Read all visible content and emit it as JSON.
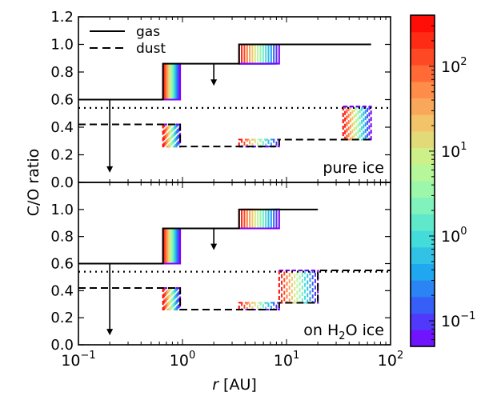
{
  "chart_data": {
    "type": "line",
    "ylabel": "C/O ratio",
    "xlabel_italic": "r",
    "xlabel_unit": "[AU]",
    "x_scale": "log",
    "xlim": [
      0.1,
      100
    ],
    "ylim": [
      0.0,
      1.2
    ],
    "y_ticks": [
      "0.0",
      "0.2",
      "0.4",
      "0.6",
      "0.8",
      "1.0",
      "1.2"
    ],
    "x_ticks": [
      {
        "base": "10",
        "exp": "−1",
        "value": 0.1
      },
      {
        "base": "10",
        "exp": "0",
        "value": 1
      },
      {
        "base": "10",
        "exp": "1",
        "value": 10
      },
      {
        "base": "10",
        "exp": "2",
        "value": 100
      }
    ],
    "legend": {
      "placement": "top-left",
      "entries": [
        {
          "label": "gas",
          "style": "solid"
        },
        {
          "label": "dust",
          "style": "dashed"
        }
      ]
    },
    "reference_line": {
      "y": 0.54,
      "style": "dotted"
    },
    "panels": [
      {
        "label": "pure ice",
        "gas": {
          "x_breaks": [
            0.1,
            0.65,
            0.95,
            3.5,
            8.5,
            65
          ],
          "y_levels": [
            0.6,
            0.86,
            0.86,
            1.0,
            1.0
          ]
        },
        "dust": {
          "x_breaks": [
            0.1,
            0.65,
            0.95,
            3.5,
            8.5,
            35,
            65
          ],
          "y_levels": [
            0.42,
            0.42,
            0.26,
            0.26,
            0.31,
            0.31
          ]
        },
        "gas_bands": [
          [
            0.65,
            0.95,
            0.6,
            0.86
          ],
          [
            3.5,
            8.5,
            0.86,
            1.0
          ]
        ],
        "dust_bands": [
          [
            0.65,
            0.95,
            0.42,
            0.26
          ],
          [
            3.5,
            8.5,
            0.26,
            0.31
          ],
          [
            35,
            65,
            0.55,
            0.31
          ]
        ],
        "arrows": [
          {
            "x": 0.2,
            "y_from": 0.6,
            "y_to": 0.07
          },
          {
            "x": 2.0,
            "y_from": 0.86,
            "y_to": 0.7
          }
        ]
      },
      {
        "label_parts": [
          "on H",
          "2",
          "O ice"
        ],
        "gas": {
          "x_breaks": [
            0.1,
            0.65,
            0.95,
            3.5,
            8.5,
            20
          ],
          "y_levels": [
            0.6,
            0.86,
            0.86,
            1.0,
            1.0
          ]
        },
        "dust": {
          "x_breaks": [
            0.1,
            0.65,
            0.95,
            3.5,
            8.5,
            20,
            100
          ],
          "y_levels": [
            0.42,
            0.42,
            0.26,
            0.26,
            0.31,
            0.55
          ]
        },
        "gas_bands": [
          [
            0.65,
            0.95,
            0.6,
            0.86
          ],
          [
            3.5,
            8.5,
            0.86,
            1.0
          ]
        ],
        "dust_bands": [
          [
            0.65,
            0.95,
            0.42,
            0.26
          ],
          [
            3.5,
            8.5,
            0.26,
            0.31
          ],
          [
            8.5,
            20,
            0.55,
            0.31
          ]
        ],
        "arrows": [
          {
            "x": 0.2,
            "y_from": 0.6,
            "y_to": 0.07
          },
          {
            "x": 2.0,
            "y_from": 0.86,
            "y_to": 0.7
          }
        ]
      }
    ],
    "colorbar": {
      "scale": "log",
      "range": [
        0.05,
        400
      ],
      "ticks": [
        {
          "base": "10",
          "exp": "−1",
          "value": 0.1
        },
        {
          "base": "10",
          "exp": "0",
          "value": 1
        },
        {
          "base": "10",
          "exp": "1",
          "value": 10
        },
        {
          "base": "10",
          "exp": "2",
          "value": 100
        }
      ],
      "levels": 20,
      "colormap": [
        "#7f00ff",
        "#3b55f9",
        "#1ea7f0",
        "#46e0d8",
        "#8cf6b5",
        "#c6f88e",
        "#f2c86d",
        "#ff8a47",
        "#ff3f1f",
        "#ff0000"
      ]
    }
  }
}
